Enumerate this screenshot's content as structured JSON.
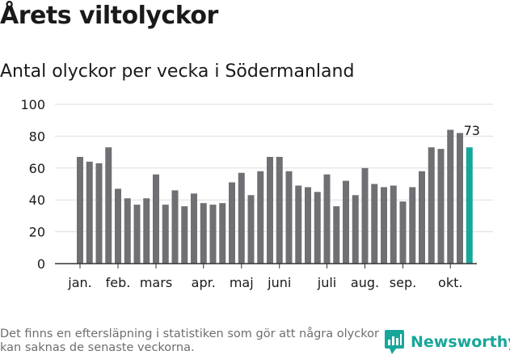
{
  "header": {
    "title": "Årets viltolyckor",
    "subtitle": "Antal olyckor per vecka i Södermanland"
  },
  "footer": {
    "note": "Det finns en eftersläpning i statistiken som gör att några olyckor kan saknas de senaste veckorna.",
    "brand": "Newsworthy"
  },
  "colors": {
    "bar": "#707074",
    "highlight": "#17a79a",
    "grid": "#dddddd",
    "axis": "#333333",
    "brand": "#17a79a"
  },
  "chart_data": {
    "type": "bar",
    "title": "Antal olyckor per vecka i Södermanland",
    "xlabel": "",
    "ylabel": "",
    "ylim": [
      0,
      100
    ],
    "yticks": [
      0,
      20,
      40,
      60,
      80,
      100
    ],
    "grid": true,
    "legend": "none",
    "month_labels": [
      {
        "label": "jan.",
        "week": 1
      },
      {
        "label": "feb.",
        "week": 5
      },
      {
        "label": "mars",
        "week": 9
      },
      {
        "label": "apr.",
        "week": 14
      },
      {
        "label": "maj",
        "week": 18
      },
      {
        "label": "juni",
        "week": 22
      },
      {
        "label": "juli",
        "week": 27
      },
      {
        "label": "aug.",
        "week": 31
      },
      {
        "label": "sep.",
        "week": 35
      },
      {
        "label": "okt.",
        "week": 40
      }
    ],
    "weeks": [
      1,
      2,
      3,
      4,
      5,
      6,
      7,
      8,
      9,
      10,
      11,
      12,
      13,
      14,
      15,
      16,
      17,
      18,
      19,
      20,
      21,
      22,
      23,
      24,
      25,
      26,
      27,
      28,
      29,
      30,
      31,
      32,
      33,
      34,
      35,
      36,
      37,
      38,
      39,
      40,
      41,
      42
    ],
    "values": [
      67,
      64,
      63,
      73,
      47,
      41,
      37,
      41,
      56,
      37,
      46,
      36,
      44,
      38,
      37,
      38,
      51,
      57,
      43,
      58,
      67,
      67,
      58,
      49,
      48,
      45,
      56,
      36,
      52,
      43,
      60,
      50,
      48,
      49,
      39,
      48,
      58,
      73,
      72,
      84,
      82,
      73
    ],
    "highlight_index": 41,
    "annotations": [
      {
        "week": 42,
        "text": "73"
      }
    ]
  }
}
